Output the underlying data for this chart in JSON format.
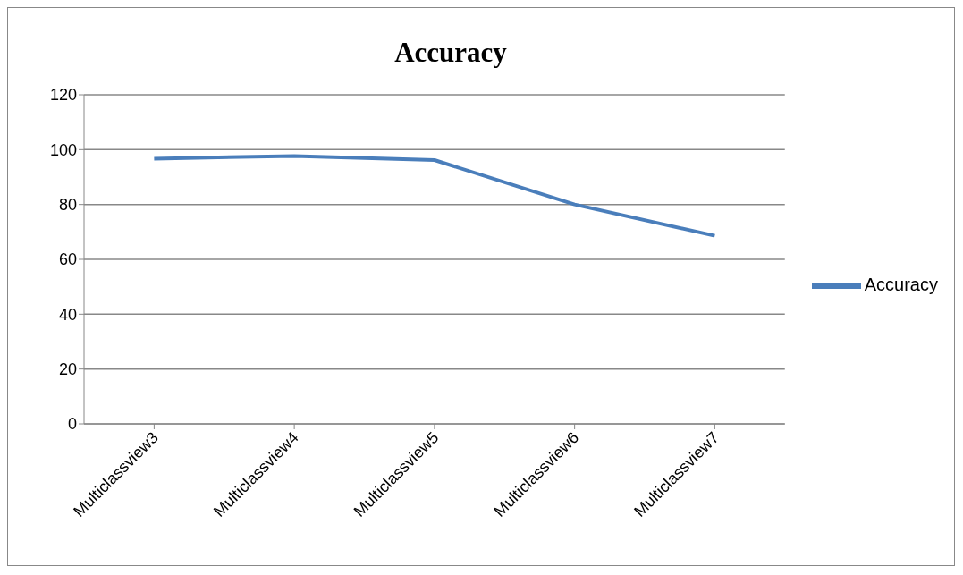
{
  "chart_data": {
    "type": "line",
    "title": "Accuracy",
    "categories": [
      "Multiclassview3",
      "Multiclassview4",
      "Multiclassview5",
      "Multiclassview6",
      "Multiclassview7"
    ],
    "series": [
      {
        "name": "Accuracy",
        "color": "#4a7ebb",
        "values": [
          96.7,
          97.7,
          96.2,
          80,
          68.6
        ]
      }
    ],
    "ylim": [
      0,
      120
    ],
    "yticks": [
      0,
      20,
      40,
      60,
      80,
      100,
      120
    ],
    "grid": "y",
    "legend": "right",
    "marker": "none"
  }
}
